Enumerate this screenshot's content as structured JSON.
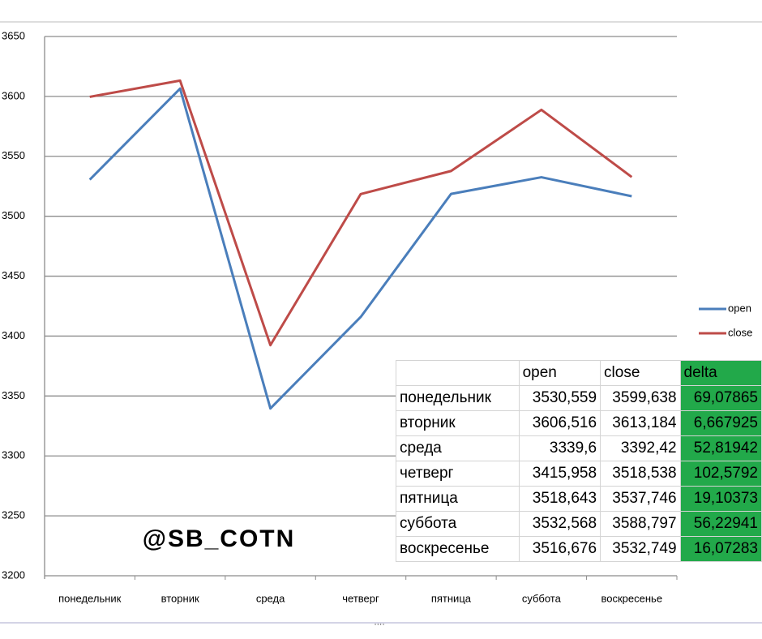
{
  "chart_data": {
    "type": "line",
    "categories": [
      "понедельник",
      "вторник",
      "среда",
      "четверг",
      "пятница",
      "суббота",
      "воскресенье"
    ],
    "series": [
      {
        "name": "open",
        "color": "#4a7ebb",
        "values": [
          3530.559,
          3606.516,
          3339.6,
          3415.958,
          3518.643,
          3532.568,
          3516.676
        ]
      },
      {
        "name": "close",
        "color": "#be4b48",
        "values": [
          3599.638,
          3613.184,
          3392.42,
          3518.538,
          3537.746,
          3588.797,
          3532.749
        ]
      }
    ],
    "ylim": [
      3200,
      3650
    ],
    "yticks": [
      3200,
      3250,
      3300,
      3350,
      3400,
      3450,
      3500,
      3550,
      3600,
      3650
    ],
    "grid": true,
    "legend": "right",
    "annotation": "@SB_COTN"
  },
  "table": {
    "header": [
      "open",
      "close",
      "delta"
    ],
    "rows": [
      [
        "понедельник",
        "3530,559",
        "3599,638",
        "69,07865"
      ],
      [
        "вторник",
        "3606,516",
        "3613,184",
        "6,667925"
      ],
      [
        "среда",
        "3339,6",
        "3392,42",
        "52,81942"
      ],
      [
        "четверг",
        "3415,958",
        "3518,538",
        "102,5792"
      ],
      [
        "пятница",
        "3518,643",
        "3537,746",
        "19,10373"
      ],
      [
        "суббота",
        "3532,568",
        "3588,797",
        "56,22941"
      ],
      [
        "воскресенье",
        "3516,676",
        "3532,749",
        "16,07283"
      ]
    ]
  }
}
